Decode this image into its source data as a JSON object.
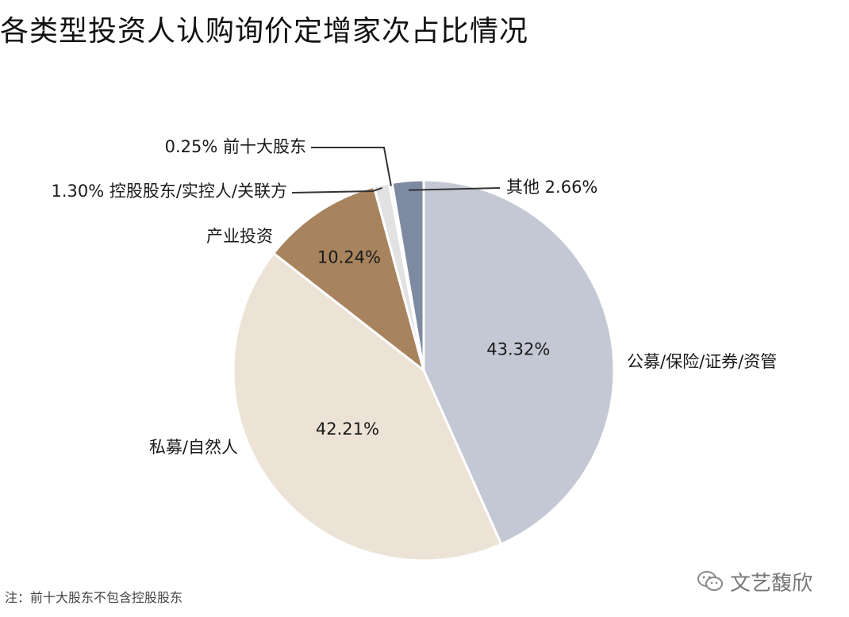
{
  "title": "各类型投资人认购询价定增家次占比情况",
  "footnote": "注：前十大股东不包含控股股东",
  "watermark": {
    "text": "文艺馥欣",
    "icon": "wechat-icon"
  },
  "chart_data": {
    "type": "pie",
    "start_angle_deg": 0,
    "direction": "clockwise",
    "slices": [
      {
        "label": "公募/保险/证券/资管",
        "value": 43.32,
        "value_label": "43.32%",
        "color": "#c3c8d4"
      },
      {
        "label": "私募/自然人",
        "value": 42.21,
        "value_label": "42.21%",
        "color": "#ece3d6"
      },
      {
        "label": "产业投资",
        "value": 10.24,
        "value_label": "10.24%",
        "color": "#a7835e"
      },
      {
        "label": "控股股东/实控人/关联方",
        "value": 1.3,
        "value_label": "1.30%",
        "color": "#e2e2e2"
      },
      {
        "label": "前十大股东",
        "value": 0.25,
        "value_label": "0.25%",
        "color": "#eeeeee"
      },
      {
        "label": "其他",
        "value": 2.66,
        "value_label": "2.66%",
        "color": "#7e8aa1"
      }
    ]
  }
}
